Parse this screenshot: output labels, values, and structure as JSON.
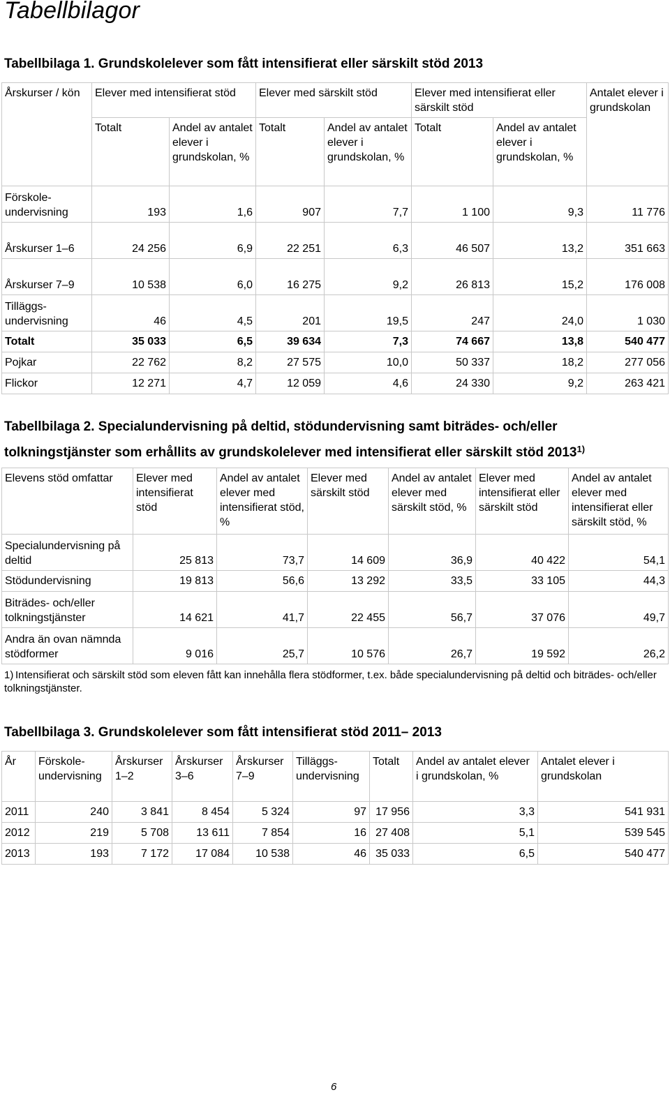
{
  "page_heading": "Tabellbilagor",
  "t1": {
    "title": "Tabellbilaga 1. Grundskolelever som fått intensifierat eller särskilt stöd 2013",
    "group_headers": {
      "rowhead": "Årskurser / kön",
      "g1": "Elever med intensifierat stöd",
      "g2": "Elever med särskilt stöd",
      "g3": "Elever med intensifierat eller särskilt stöd",
      "g4": "Antalet elever i grundskolan"
    },
    "sub_headers": {
      "tot1": "Totalt",
      "andel1": "Andel av antalet elever i grundskolan, %",
      "tot2": "Totalt",
      "andel2": "Andel av antalet elever i grundskolan, %",
      "tot3": "Totalt",
      "andel3": "Andel av antalet elever i grundskolan, %"
    },
    "rows": [
      {
        "label": "Förskole-undervisning",
        "c1": "193",
        "c2": "1,6",
        "c3": "907",
        "c4": "7,7",
        "c5": "1 100",
        "c6": "9,3",
        "c7": "11 776"
      },
      {
        "label": "Årskurser 1–6",
        "c1": "24 256",
        "c2": "6,9",
        "c3": "22 251",
        "c4": "6,3",
        "c5": "46 507",
        "c6": "13,2",
        "c7": "351 663"
      },
      {
        "label": "Årskurser 7–9",
        "c1": "10 538",
        "c2": "6,0",
        "c3": "16 275",
        "c4": "9,2",
        "c5": "26 813",
        "c6": "15,2",
        "c7": "176 008"
      },
      {
        "label": "Tilläggs-undervisning",
        "c1": "46",
        "c2": "4,5",
        "c3": "201",
        "c4": "19,5",
        "c5": "247",
        "c6": "24,0",
        "c7": "1 030"
      },
      {
        "label": "Totalt",
        "c1": "35 033",
        "c2": "6,5",
        "c3": "39 634",
        "c4": "7,3",
        "c5": "74 667",
        "c6": "13,8",
        "c7": "540 477"
      },
      {
        "label": "Pojkar",
        "c1": "22 762",
        "c2": "8,2",
        "c3": "27 575",
        "c4": "10,0",
        "c5": "50 337",
        "c6": "18,2",
        "c7": "277 056"
      },
      {
        "label": "Flickor",
        "c1": "12 271",
        "c2": "4,7",
        "c3": "12 059",
        "c4": "4,6",
        "c5": "24 330",
        "c6": "9,2",
        "c7": "263 421"
      }
    ]
  },
  "t2": {
    "title_line1": "Tabellbilaga 2. Specialundervisning på deltid, stödundervisning samt biträdes- och/eller",
    "title_line2": "tolkningstjänster som erhållits av grundskolelever med intensifierat eller särskilt stöd 2013",
    "title_sup": "1)",
    "headers": {
      "h0": "Elevens stöd omfattar",
      "h1": "Elever med intensifierat stöd",
      "h2": "Andel av antalet elever med intensifierat stöd, %",
      "h3": "Elever med särskilt stöd",
      "h4": "Andel av antalet elever med särskilt stöd, %",
      "h5": "Elever med intensifierat eller särskilt stöd",
      "h6": "Andel av antalet elever med intensifierat eller särskilt stöd, %"
    },
    "rows": [
      {
        "label": "Specialundervisning på deltid",
        "c1": "25 813",
        "c2": "73,7",
        "c3": "14 609",
        "c4": "36,9",
        "c5": "40 422",
        "c6": "54,1"
      },
      {
        "label": "Stödundervisning",
        "c1": "19 813",
        "c2": "56,6",
        "c3": "13 292",
        "c4": "33,5",
        "c5": "33 105",
        "c6": "44,3"
      },
      {
        "label": "Biträdes- och/eller tolkningstjänster",
        "c1": "14 621",
        "c2": "41,7",
        "c3": "22 455",
        "c4": "56,7",
        "c5": "37 076",
        "c6": "49,7"
      },
      {
        "label": "Andra än ovan nämnda stödformer",
        "c1": "9 016",
        "c2": "25,7",
        "c3": "10 576",
        "c4": "26,7",
        "c5": "19 592",
        "c6": "26,2"
      }
    ],
    "footnote_mark": "1)",
    "footnote_text": "Intensifierat och särskilt stöd som eleven fått kan innehålla flera stödformer, t.ex. både specialundervisning på deltid och biträdes- och/eller tolkningstjänster."
  },
  "t3": {
    "title": "Tabellbilaga 3. Grundskolelever som fått intensifierat stöd 2011– 2013",
    "headers": {
      "h0": "År",
      "h1": "Förskole-undervisning",
      "h2": "Årskurser 1–2",
      "h3": "Årskurser 3–6",
      "h4": "Årskurser 7–9",
      "h5": "Tilläggs-undervisning",
      "h6": "Totalt",
      "h7": "Andel av antalet elever i grundskolan, %",
      "h8": "Antalet elever i grundskolan"
    },
    "rows": [
      {
        "year": "2011",
        "c1": "240",
        "c2": "3 841",
        "c3": "8 454",
        "c4": "5 324",
        "c5": "97",
        "c6": "17 956",
        "c7": "3,3",
        "c8": "541 931"
      },
      {
        "year": "2012",
        "c1": "219",
        "c2": "5 708",
        "c3": "13 611",
        "c4": "7 854",
        "c5": "16",
        "c6": "27 408",
        "c7": "5,1",
        "c8": "539 545"
      },
      {
        "year": "2013",
        "c1": "193",
        "c2": "7 172",
        "c3": "17 084",
        "c4": "10 538",
        "c5": "46",
        "c6": "35 033",
        "c7": "6,5",
        "c8": "540 477"
      }
    ]
  },
  "page_number": "6"
}
